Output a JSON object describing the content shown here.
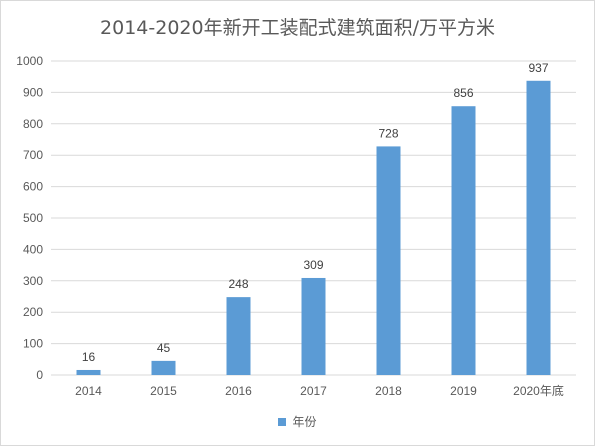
{
  "chart_data": {
    "type": "bar",
    "title": "2014-2020年新开工装配式建筑面积/万平方米",
    "categories": [
      "2014",
      "2015",
      "2016",
      "2017",
      "2018",
      "2019",
      "2020年底"
    ],
    "series": [
      {
        "name": "年份",
        "values": [
          16,
          45,
          248,
          309,
          728,
          856,
          937
        ]
      }
    ],
    "ylim": [
      0,
      1000
    ],
    "yticks": [
      "0",
      "100",
      "200",
      "300",
      "400",
      "500",
      "600",
      "700",
      "800",
      "900",
      "1000"
    ],
    "xlabel": "",
    "ylabel": "",
    "grid": true,
    "legend": "bottom",
    "bar_color": "#5b9bd5",
    "grid_color": "#d9d9d9"
  }
}
